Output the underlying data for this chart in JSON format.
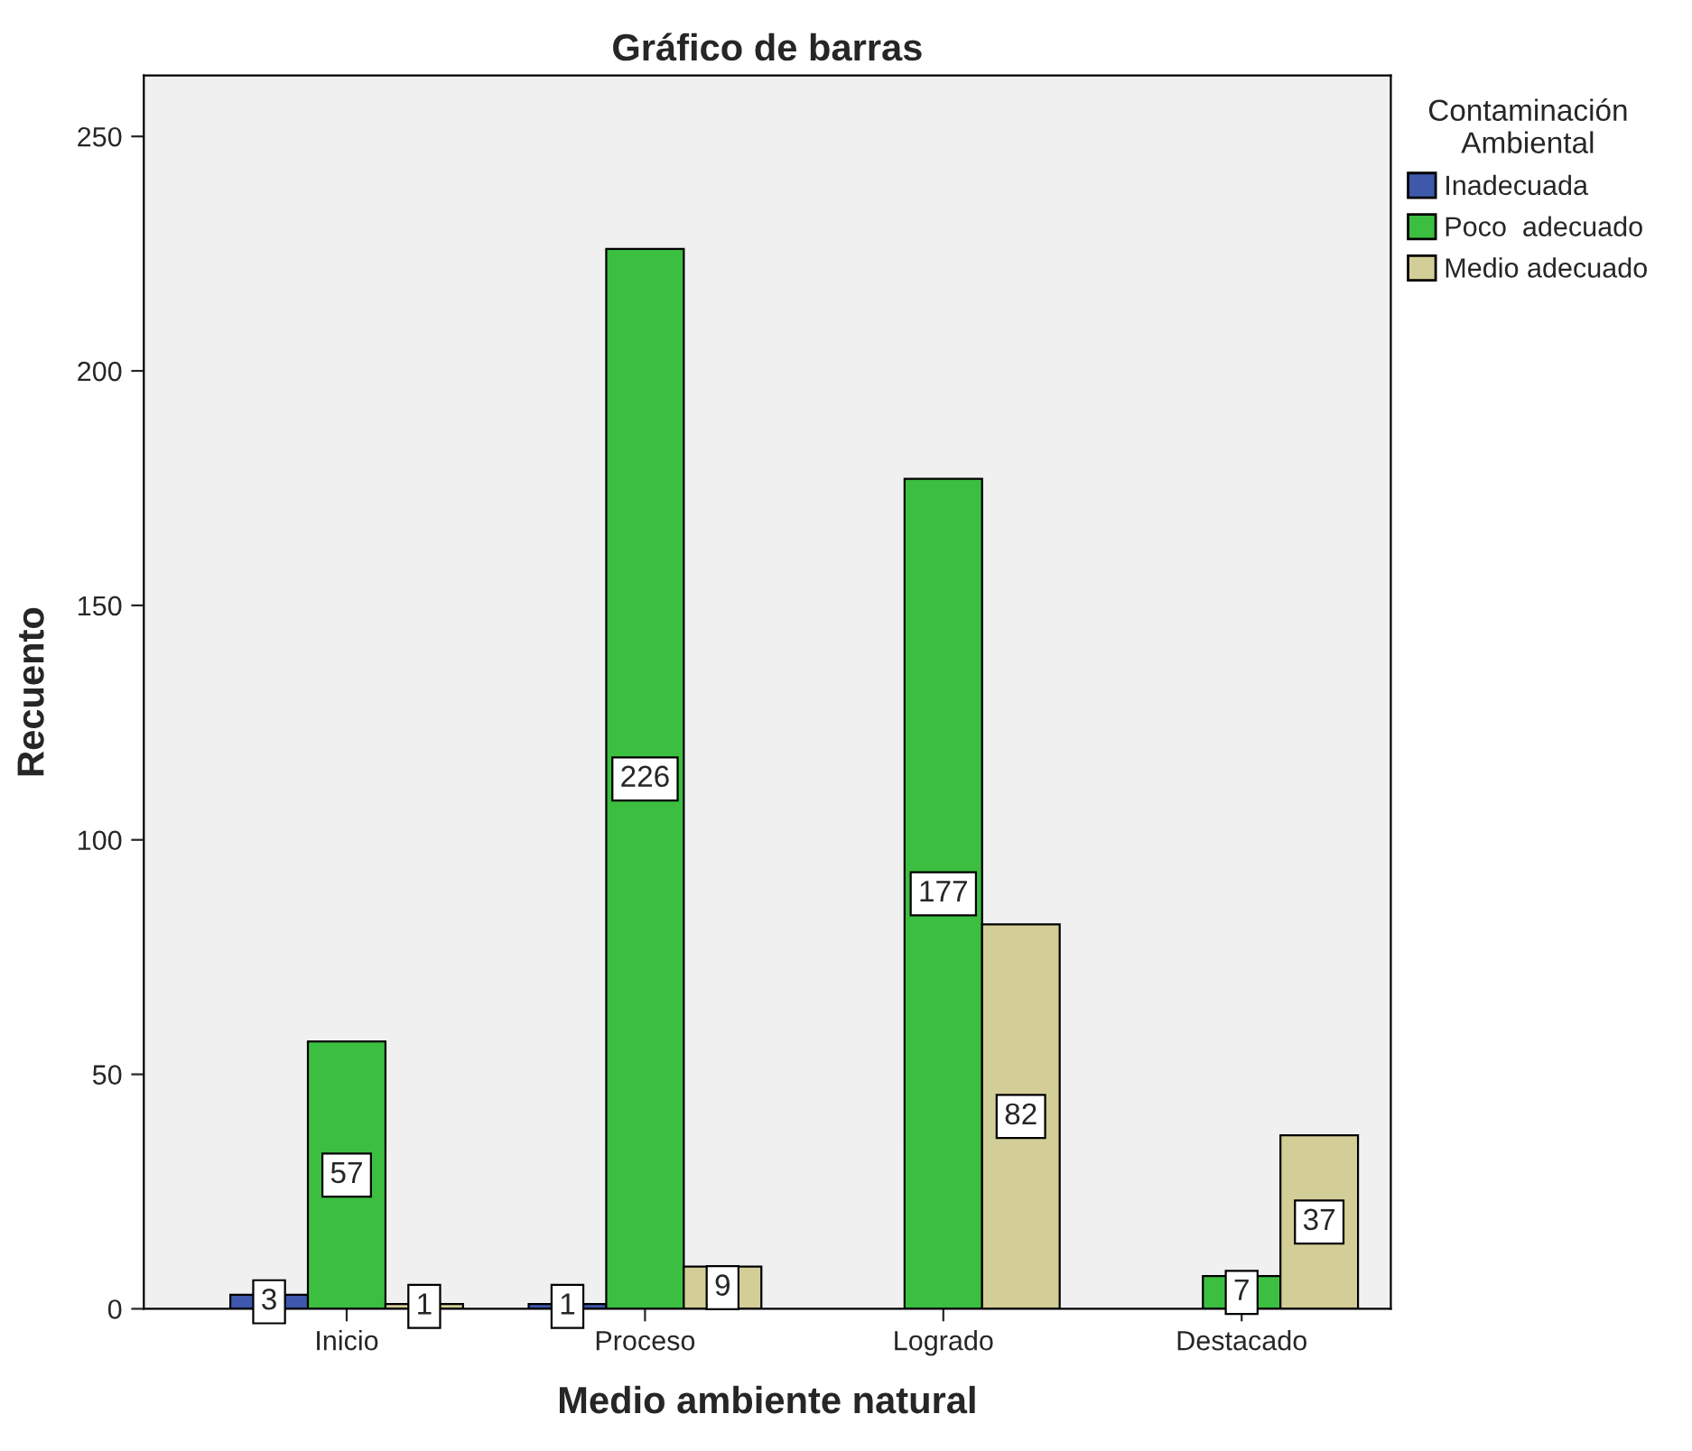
{
  "chart_data": {
    "type": "bar",
    "title": "Gráfico de barras",
    "xlabel": "Medio ambiente natural",
    "ylabel": "Recuento",
    "legend_title": "Contaminación\nAmbiental",
    "categories": [
      "Inicio",
      "Proceso",
      "Logrado",
      "Destacado"
    ],
    "series": [
      {
        "name": "Inadecuada",
        "color": "#3e58ac",
        "values": [
          3,
          1,
          null,
          null
        ]
      },
      {
        "name": "Poco  adecuado",
        "color": "#3cbf40",
        "values": [
          57,
          226,
          177,
          7
        ]
      },
      {
        "name": "Medio adecuado",
        "color": "#d3ce97",
        "values": [
          1,
          9,
          82,
          37
        ]
      }
    ],
    "ylim": [
      0,
      263
    ],
    "yticks": [
      0,
      50,
      100,
      150,
      200,
      250
    ],
    "grid": false,
    "legend": "top right",
    "data_labels": true
  }
}
